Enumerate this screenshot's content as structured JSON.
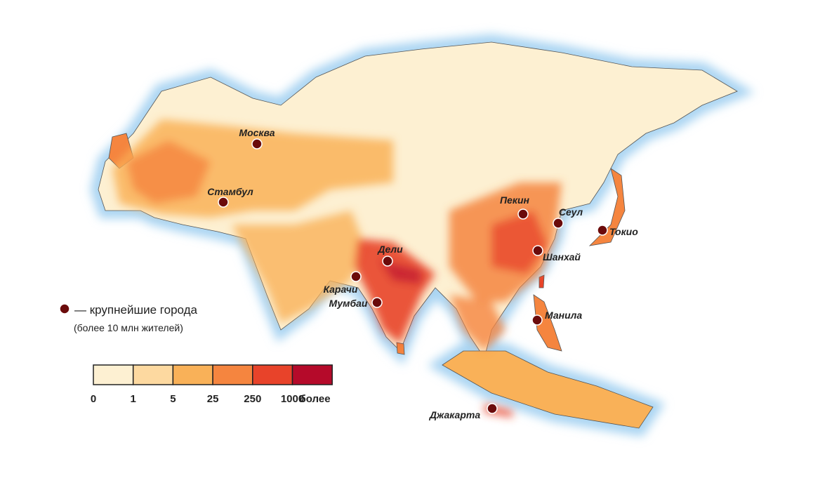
{
  "cities": [
    {
      "name": "Москва"
    },
    {
      "name": "Стамбул"
    },
    {
      "name": "Пекин"
    },
    {
      "name": "Сеул"
    },
    {
      "name": "Токио"
    },
    {
      "name": "Дели"
    },
    {
      "name": "Шанхай"
    },
    {
      "name": "Карачи"
    },
    {
      "name": "Мумбаи"
    },
    {
      "name": "Манила"
    },
    {
      "name": "Джакарта"
    }
  ],
  "legend": {
    "marker_label": "— крупнейшие города",
    "marker_note": "(более 10 млн жителей)"
  },
  "scale": {
    "labels": [
      0,
      1,
      5,
      25,
      250,
      1000,
      "более"
    ],
    "colors": [
      "#fdf0d2",
      "#fdd9a0",
      "#f9b158",
      "#f5853f",
      "#e8432a",
      "#b50a2a"
    ]
  }
}
